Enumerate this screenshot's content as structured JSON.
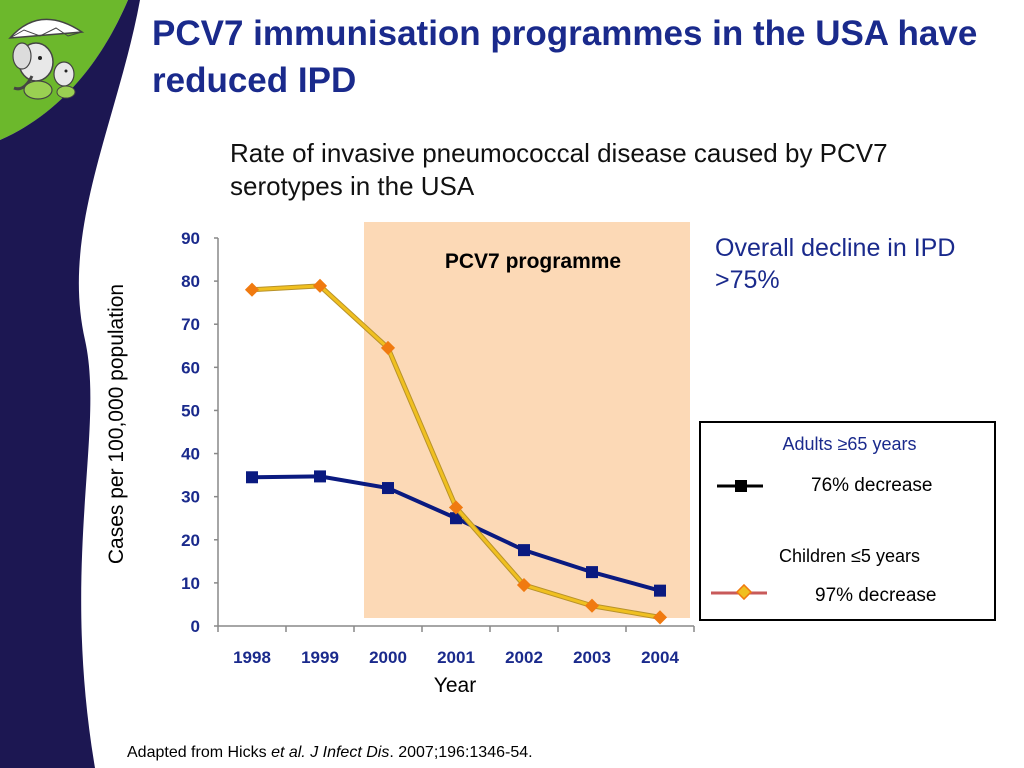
{
  "slide": {
    "title": "PCV7 immunisation programmes in the USA have reduced IPD",
    "subtitle": "Rate of invasive pneumococcal disease caused by PCV7 serotypes in the USA",
    "callout": "Overall decline in IPD >75%",
    "footer": {
      "prefix": "Adapted from Hicks ",
      "etal": "et al.",
      "journal": " J Infect Dis",
      "suffix": ". 2007;196:1346-54."
    },
    "colors": {
      "title": "#1a2a8c",
      "sidebar_navy": "#1c1752",
      "sidebar_green": "#6cb82c",
      "programme_shade": "#fcd9b6",
      "adults_series": "#0a1a80",
      "children_series": "#f0c020",
      "children_marker": "#f07a10"
    },
    "logo_icon": "elephant-mascot-with-umbrella-icon"
  },
  "legend": {
    "adults_label": "Adults ≥65 years",
    "adults_change": "76% decrease",
    "children_label": "Children ≤5 years",
    "children_change": "97% decrease"
  },
  "chart_data": {
    "type": "line",
    "title": "",
    "xlabel": "Year",
    "ylabel": "Cases per 100,000 population",
    "categories": [
      "1998",
      "1999",
      "2000",
      "2001",
      "2002",
      "2003",
      "2004"
    ],
    "y_ticks": [
      0,
      10,
      20,
      30,
      40,
      50,
      60,
      70,
      80,
      90
    ],
    "ylim": [
      0,
      90
    ],
    "grid": false,
    "legend_position": "right",
    "annotation": {
      "label": "PCV7 programme",
      "from": "2000",
      "to": "2004"
    },
    "series": [
      {
        "name": "Adults ≥65 years",
        "values": [
          34.5,
          34.7,
          32,
          25,
          17.6,
          12.5,
          8.2
        ],
        "color": "#0a1a80",
        "marker": "square"
      },
      {
        "name": "Children ≤5 years",
        "values": [
          78,
          78.9,
          64.5,
          27.5,
          9.5,
          4.7,
          2
        ],
        "color": "#f0c020",
        "marker": "diamond",
        "marker_color": "#f07a10"
      }
    ]
  }
}
